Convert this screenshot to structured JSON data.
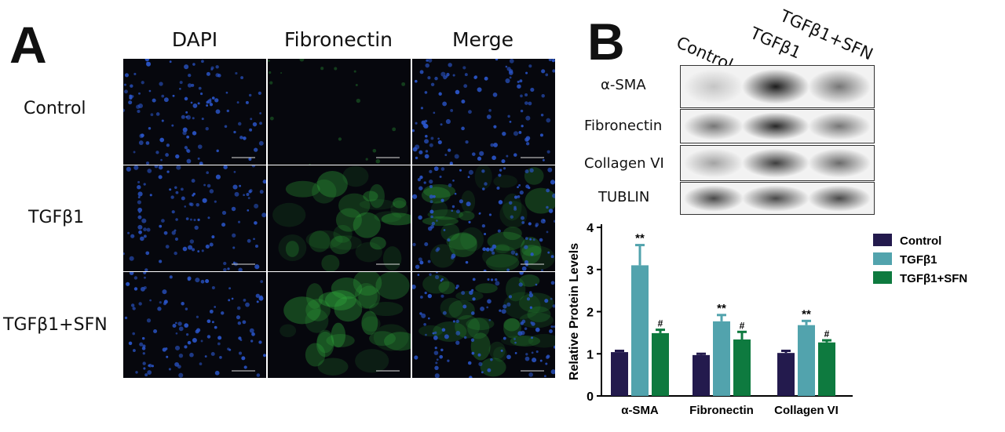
{
  "panel_a": {
    "letter": "A",
    "columns": [
      "DAPI",
      "Fibronectin",
      "Merge"
    ],
    "rows": [
      "Control",
      "TGFβ1",
      "TGFβ1+SFN"
    ]
  },
  "panel_b": {
    "letter": "B",
    "lanes": [
      "Control",
      "TGFβ1",
      "TGFβ1+SFN"
    ],
    "blots": [
      "α-SMA",
      "Fibronectin",
      "Collagen VI",
      "TUBLIN"
    ]
  },
  "colors": {
    "Control": "#231a4d",
    "TGFβ1": "#52a3ad",
    "TGFβ1+SFN": "#0e7a3f",
    "dapi": "#2a55c9",
    "fibronectin": "#2fa43a"
  },
  "chart_data": {
    "type": "bar",
    "ylabel": "Relative  Protein Levels",
    "xlabel": "",
    "ylim": [
      0,
      4
    ],
    "yticks": [
      "0",
      "1",
      "2",
      "3",
      "4"
    ],
    "categories": [
      "α-SMA",
      "Fibronectin",
      "Collagen VI"
    ],
    "legend_position": "right",
    "series": [
      {
        "name": "Control",
        "values": [
          1.04,
          0.97,
          1.02
        ],
        "errors": [
          0.03,
          0.03,
          0.05
        ],
        "marks": [
          "",
          "",
          ""
        ]
      },
      {
        "name": "TGFβ1",
        "values": [
          3.1,
          1.77,
          1.68
        ],
        "errors": [
          0.48,
          0.15,
          0.1
        ],
        "marks": [
          "**",
          "**",
          "**"
        ]
      },
      {
        "name": "TGFβ1+SFN",
        "values": [
          1.49,
          1.34,
          1.27
        ],
        "errors": [
          0.08,
          0.18,
          0.05
        ],
        "marks": [
          "#",
          "#",
          "#"
        ]
      }
    ]
  }
}
